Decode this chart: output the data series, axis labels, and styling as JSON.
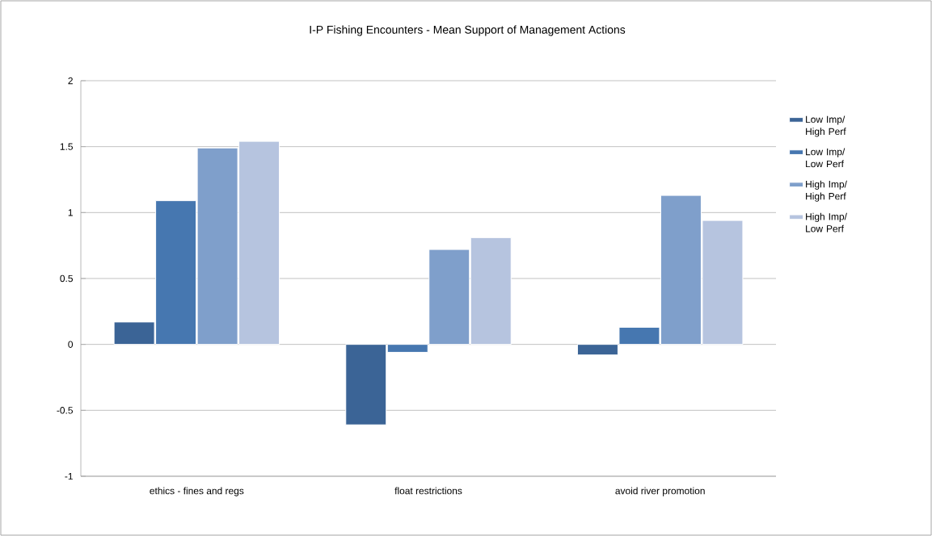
{
  "chart_data": {
    "type": "bar",
    "title": "I-P Fishing Encounters - Mean Support of Management Actions",
    "categories": [
      "ethics - fines and regs",
      "float restrictions",
      "avoid river promotion"
    ],
    "series": [
      {
        "name": "Low Imp/ High Perf",
        "color": "#3b6496",
        "values": [
          0.17,
          -0.61,
          -0.08
        ]
      },
      {
        "name": "Low Imp/ Low Perf",
        "color": "#4677b0",
        "values": [
          1.09,
          -0.06,
          0.13
        ]
      },
      {
        "name": "High Imp/ High Perf",
        "color": "#7f9fcb",
        "values": [
          1.49,
          0.72,
          1.13
        ]
      },
      {
        "name": "High Imp/ Low Perf",
        "color": "#b6c4df",
        "values": [
          1.54,
          0.81,
          0.94
        ]
      }
    ],
    "ylim": [
      -1,
      2
    ],
    "yticks": [
      -1,
      -0.5,
      0,
      0.5,
      1,
      1.5,
      2
    ],
    "grid": "y",
    "legend": "right"
  }
}
